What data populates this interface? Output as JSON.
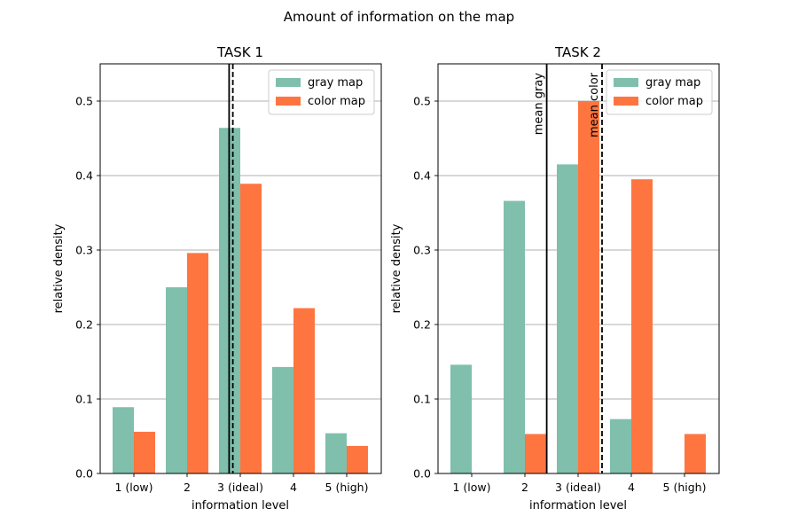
{
  "figure": {
    "title": "Amount of information on the map"
  },
  "colors": {
    "gray_map": "#7fbfab",
    "color_map": "#ff7540",
    "grid": "#b0b0b0",
    "mean_line": "#000000"
  },
  "chart_data": [
    {
      "type": "bar",
      "title": "TASK 1",
      "xlabel": "information level",
      "ylabel": "relative density",
      "categories": [
        "1 (low)",
        "2",
        "3 (ideal)",
        "4",
        "5 (high)"
      ],
      "series": [
        {
          "name": "gray map",
          "values": [
            0.089,
            0.25,
            0.464,
            0.143,
            0.054
          ]
        },
        {
          "name": "color map",
          "values": [
            0.056,
            0.296,
            0.389,
            0.222,
            0.037
          ]
        }
      ],
      "ylim": [
        0,
        0.55
      ],
      "yticks": [
        0.0,
        0.1,
        0.2,
        0.3,
        0.4,
        0.5
      ],
      "ytick_labels": [
        "0.0",
        "0.1",
        "0.2",
        "0.3",
        "0.4",
        "0.5"
      ],
      "grid": "y",
      "legend": "upper right",
      "mean_lines": [
        {
          "x": 2.79,
          "style": "solid",
          "label": ""
        },
        {
          "x": 2.86,
          "style": "dashed",
          "label": ""
        }
      ]
    },
    {
      "type": "bar",
      "title": "TASK 2",
      "xlabel": "information level",
      "ylabel": "relative density",
      "categories": [
        "1 (low)",
        "2",
        "3 (ideal)",
        "4",
        "5 (high)"
      ],
      "series": [
        {
          "name": "gray map",
          "values": [
            0.146,
            0.366,
            0.415,
            0.073,
            0.0
          ]
        },
        {
          "name": "color map",
          "values": [
            0.0,
            0.053,
            0.5,
            0.395,
            0.053
          ]
        }
      ],
      "ylim": [
        0,
        0.55
      ],
      "yticks": [
        0.0,
        0.1,
        0.2,
        0.3,
        0.4,
        0.5
      ],
      "ytick_labels": [
        "0.0",
        "0.1",
        "0.2",
        "0.3",
        "0.4",
        "0.5"
      ],
      "grid": "y",
      "legend": "upper right",
      "mean_lines": [
        {
          "x": 2.41,
          "style": "solid",
          "label": "mean gray"
        },
        {
          "x": 3.45,
          "style": "dashed",
          "label": "mean color"
        }
      ]
    }
  ]
}
